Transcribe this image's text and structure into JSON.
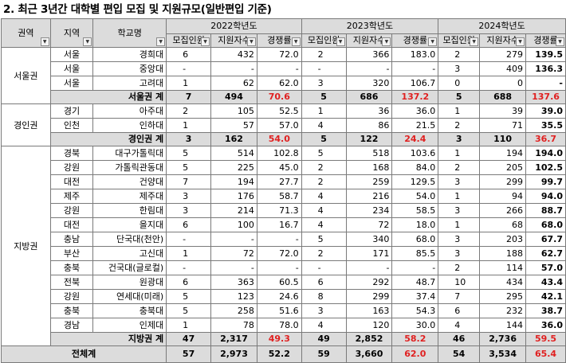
{
  "title": "2. 최근 3년간 대학별 편입 모집 및 지원규모(일반편입 기준)",
  "headers": {
    "region_group": "권역",
    "area": "지역",
    "school": "학교명",
    "years": [
      "2022학년도",
      "2023학년도",
      "2024학년도"
    ],
    "cols": [
      "모집인원",
      "지원자수",
      "경쟁률"
    ],
    "filter_icon": "dropdown-arrow-icon"
  },
  "groups": [
    {
      "name": "서울권",
      "rows": [
        {
          "area": "서울",
          "school": "경희대",
          "y": [
            [
              "6",
              "432",
              "72.0"
            ],
            [
              "2",
              "366",
              "183.0"
            ],
            [
              "2",
              "279",
              "139.5"
            ]
          ]
        },
        {
          "area": "서울",
          "school": "중앙대",
          "y": [
            [
              "-",
              "-",
              "-"
            ],
            [
              "-",
              "-",
              "-"
            ],
            [
              "3",
              "409",
              "136.3"
            ]
          ]
        },
        {
          "area": "서울",
          "school": "고려대",
          "y": [
            [
              "1",
              "62",
              "62.0"
            ],
            [
              "3",
              "320",
              "106.7"
            ],
            [
              "0",
              "0",
              "-"
            ]
          ]
        }
      ],
      "subtotal": {
        "label": "서울권 계",
        "y": [
          [
            "7",
            "494",
            "70.6"
          ],
          [
            "5",
            "686",
            "137.2"
          ],
          [
            "5",
            "688",
            "137.6"
          ]
        ]
      }
    },
    {
      "name": "경인권",
      "rows": [
        {
          "area": "경기",
          "school": "아주대",
          "y": [
            [
              "2",
              "105",
              "52.5"
            ],
            [
              "1",
              "36",
              "36.0"
            ],
            [
              "1",
              "39",
              "39.0"
            ]
          ]
        },
        {
          "area": "인천",
          "school": "인하대",
          "y": [
            [
              "1",
              "57",
              "57.0"
            ],
            [
              "4",
              "86",
              "21.5"
            ],
            [
              "2",
              "71",
              "35.5"
            ]
          ]
        }
      ],
      "subtotal": {
        "label": "경인권 계",
        "y": [
          [
            "3",
            "162",
            "54.0"
          ],
          [
            "5",
            "122",
            "24.4"
          ],
          [
            "3",
            "110",
            "36.7"
          ]
        ]
      }
    },
    {
      "name": "지방권",
      "rows": [
        {
          "area": "경북",
          "school": "대구가톨릭대",
          "y": [
            [
              "5",
              "514",
              "102.8"
            ],
            [
              "5",
              "518",
              "103.6"
            ],
            [
              "1",
              "194",
              "194.0"
            ]
          ]
        },
        {
          "area": "강원",
          "school": "가톨릭관동대",
          "y": [
            [
              "5",
              "225",
              "45.0"
            ],
            [
              "2",
              "168",
              "84.0"
            ],
            [
              "2",
              "205",
              "102.5"
            ]
          ]
        },
        {
          "area": "대전",
          "school": "건양대",
          "y": [
            [
              "7",
              "194",
              "27.7"
            ],
            [
              "2",
              "259",
              "129.5"
            ],
            [
              "3",
              "299",
              "99.7"
            ]
          ]
        },
        {
          "area": "제주",
          "school": "제주대",
          "y": [
            [
              "3",
              "176",
              "58.7"
            ],
            [
              "4",
              "216",
              "54.0"
            ],
            [
              "1",
              "94",
              "94.0"
            ]
          ]
        },
        {
          "area": "강원",
          "school": "한림대",
          "y": [
            [
              "3",
              "214",
              "71.3"
            ],
            [
              "4",
              "234",
              "58.5"
            ],
            [
              "3",
              "266",
              "88.7"
            ]
          ]
        },
        {
          "area": "대전",
          "school": "을지대",
          "y": [
            [
              "6",
              "100",
              "16.7"
            ],
            [
              "4",
              "72",
              "18.0"
            ],
            [
              "1",
              "68",
              "68.0"
            ]
          ]
        },
        {
          "area": "충남",
          "school": "단국대(천안)",
          "y": [
            [
              "-",
              "-",
              "-"
            ],
            [
              "5",
              "340",
              "68.0"
            ],
            [
              "3",
              "203",
              "67.7"
            ]
          ]
        },
        {
          "area": "부산",
          "school": "고신대",
          "y": [
            [
              "1",
              "72",
              "72.0"
            ],
            [
              "2",
              "171",
              "85.5"
            ],
            [
              "3",
              "188",
              "62.7"
            ]
          ]
        },
        {
          "area": "충북",
          "school": "건국대(글로컬)",
          "y": [
            [
              "-",
              "-",
              "-"
            ],
            [
              "-",
              "-",
              "-"
            ],
            [
              "2",
              "114",
              "57.0"
            ]
          ]
        },
        {
          "area": "전북",
          "school": "원광대",
          "y": [
            [
              "6",
              "363",
              "60.5"
            ],
            [
              "6",
              "292",
              "48.7"
            ],
            [
              "10",
              "434",
              "43.4"
            ]
          ]
        },
        {
          "area": "강원",
          "school": "연세대(미래)",
          "y": [
            [
              "5",
              "123",
              "24.6"
            ],
            [
              "8",
              "299",
              "37.4"
            ],
            [
              "7",
              "295",
              "42.1"
            ]
          ]
        },
        {
          "area": "충북",
          "school": "충북대",
          "y": [
            [
              "5",
              "258",
              "51.6"
            ],
            [
              "3",
              "163",
              "54.3"
            ],
            [
              "6",
              "232",
              "38.7"
            ]
          ]
        },
        {
          "area": "경남",
          "school": "인제대",
          "y": [
            [
              "1",
              "78",
              "78.0"
            ],
            [
              "4",
              "120",
              "30.0"
            ],
            [
              "4",
              "144",
              "36.0"
            ]
          ]
        }
      ],
      "subtotal": {
        "label": "지방권 계",
        "y": [
          [
            "47",
            "2,317",
            "49.3"
          ],
          [
            "49",
            "2,852",
            "58.2"
          ],
          [
            "46",
            "2,736",
            "59.5"
          ]
        ]
      }
    }
  ],
  "total": {
    "label": "전체계",
    "y": [
      [
        "57",
        "2,973",
        "52.2"
      ],
      [
        "59",
        "3,660",
        "62.0"
      ],
      [
        "54",
        "3,534",
        "65.4"
      ]
    ]
  },
  "colors": {
    "header_bg": "#dcdcdc",
    "highlight_red": "#e02020",
    "border": "#7a7a7a"
  }
}
